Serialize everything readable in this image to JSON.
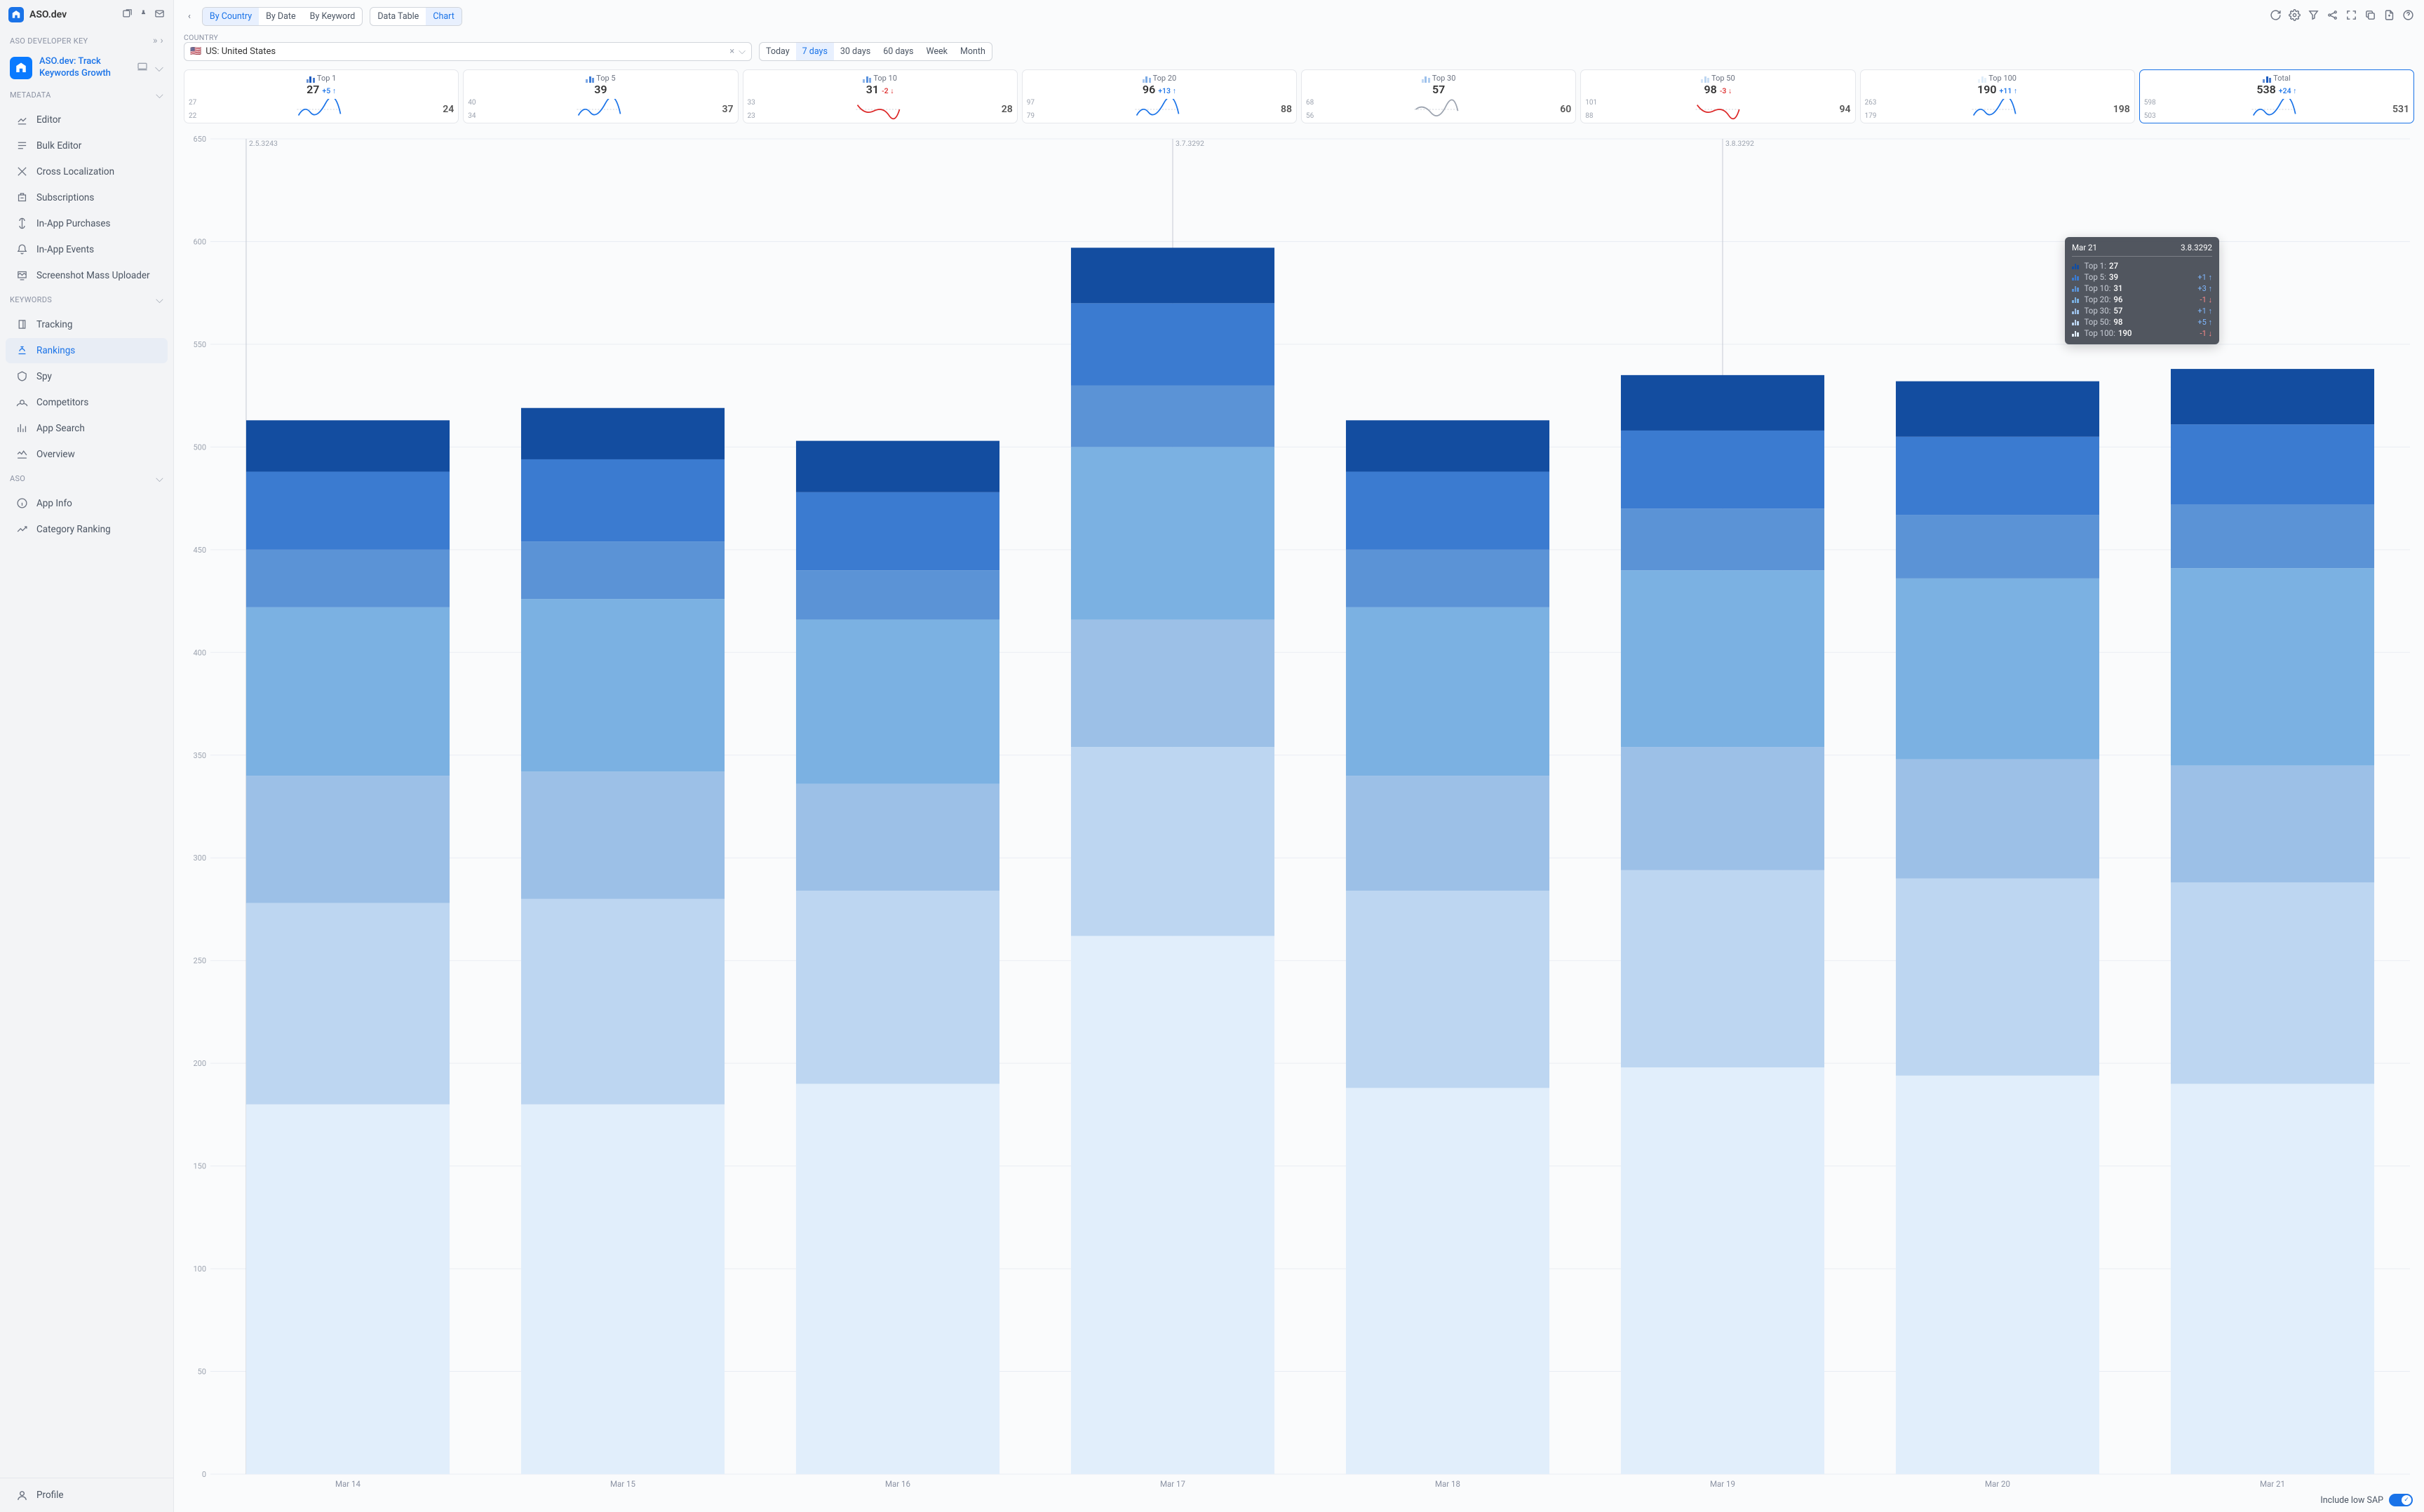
{
  "sidebar": {
    "title": "ASO.dev",
    "dev_key_label": "ASO DEVELOPER KEY",
    "app_name": "ASO.dev: Track Keywords Growth",
    "sections": {
      "metadata": {
        "label": "METADATA",
        "items": [
          "Editor",
          "Bulk Editor",
          "Cross Localization",
          "Subscriptions",
          "In-App Purchases",
          "In-App Events",
          "Screenshot Mass Uploader"
        ]
      },
      "keywords": {
        "label": "KEYWORDS",
        "items": [
          "Tracking",
          "Rankings",
          "Spy",
          "Competitors",
          "App Search",
          "Overview"
        ],
        "active": "Rankings"
      },
      "aso": {
        "label": "ASO",
        "items": [
          "App Info",
          "Category Ranking"
        ]
      }
    },
    "profile": "Profile"
  },
  "toolbar": {
    "tabs": [
      "By Country",
      "By Date",
      "By Keyword"
    ],
    "active_tab": "By Country",
    "view": [
      "Data Table",
      "Chart"
    ],
    "active_view": "Chart"
  },
  "country": {
    "label": "COUNTRY",
    "flag": "🇺🇸",
    "text": "US: United States"
  },
  "ranges": {
    "options": [
      "Today",
      "7 days",
      "30 days",
      "60 days",
      "Week",
      "Month"
    ],
    "active": "7 days"
  },
  "cards": [
    {
      "title": "Top 1",
      "value": "27",
      "delta": "+5",
      "dir": "up",
      "l_top": "27",
      "l_bot": "22",
      "r": "24",
      "color_ic": "#1b5bbf",
      "spark": "blue"
    },
    {
      "title": "Top 5",
      "value": "39",
      "delta": "",
      "dir": "",
      "l_top": "40",
      "l_bot": "34",
      "r": "37",
      "color_ic": "#3b7bd6",
      "spark": "blue"
    },
    {
      "title": "Top 10",
      "value": "31",
      "delta": "-2",
      "dir": "down",
      "l_top": "33",
      "l_bot": "23",
      "r": "28",
      "color_ic": "#5b93de",
      "spark": "red"
    },
    {
      "title": "Top 20",
      "value": "96",
      "delta": "+13",
      "dir": "up",
      "l_top": "97",
      "l_bot": "79",
      "r": "88",
      "color_ic": "#7baae5",
      "spark": "blue"
    },
    {
      "title": "Top 30",
      "value": "57",
      "delta": "",
      "dir": "",
      "l_top": "68",
      "l_bot": "56",
      "r": "60",
      "color_ic": "#9cc0eb",
      "spark": "gray"
    },
    {
      "title": "Top 50",
      "value": "98",
      "delta": "-3",
      "dir": "down",
      "l_top": "101",
      "l_bot": "88",
      "r": "94",
      "color_ic": "#bdd6f1",
      "spark": "red"
    },
    {
      "title": "Top 100",
      "value": "190",
      "delta": "+11",
      "dir": "up",
      "l_top": "263",
      "l_bot": "179",
      "r": "198",
      "color_ic": "#deecf8",
      "spark": "blue"
    },
    {
      "title": "Total",
      "value": "538",
      "delta": "+24",
      "dir": "up",
      "l_top": "598",
      "l_bot": "503",
      "r": "531",
      "color_ic": "#1b5bbf",
      "spark": "blue",
      "active": true
    }
  ],
  "chart": {
    "type": "stacked-bar",
    "ylim": [
      0,
      650
    ],
    "ytick_step": 50,
    "y_ticks": [
      0,
      50,
      100,
      150,
      200,
      250,
      300,
      350,
      400,
      450,
      500,
      550,
      600,
      650
    ],
    "x_labels": [
      "Mar 14",
      "Mar 15",
      "Mar 16",
      "Mar 17",
      "Mar 18",
      "Mar 19",
      "Mar 20",
      "Mar 21"
    ],
    "segment_order": [
      "top100",
      "top50",
      "top30",
      "top20",
      "top10",
      "top5",
      "top1"
    ],
    "segment_colors": {
      "top100": "#e1eefb",
      "top50": "#bdd6f1",
      "top30": "#9cc0e7",
      "top20": "#7bb1e2",
      "top10": "#5b93d6",
      "top5": "#3b7bd0",
      "top1": "#134da0"
    },
    "bars": [
      {
        "top100": 180,
        "top50": 98,
        "top30": 62,
        "top20": 82,
        "top10": 28,
        "top5": 38,
        "top1": 25
      },
      {
        "top100": 180,
        "top50": 100,
        "top30": 62,
        "top20": 84,
        "top10": 28,
        "top5": 40,
        "top1": 25
      },
      {
        "top100": 190,
        "top50": 94,
        "top30": 52,
        "top20": 80,
        "top10": 24,
        "top5": 38,
        "top1": 25
      },
      {
        "top100": 262,
        "top50": 92,
        "top30": 62,
        "top20": 84,
        "top10": 30,
        "top5": 40,
        "top1": 27
      },
      {
        "top100": 188,
        "top50": 96,
        "top30": 56,
        "top20": 82,
        "top10": 28,
        "top5": 38,
        "top1": 25
      },
      {
        "top100": 198,
        "top50": 96,
        "top30": 60,
        "top20": 86,
        "top10": 30,
        "top5": 38,
        "top1": 27
      },
      {
        "top100": 194,
        "top50": 96,
        "top30": 58,
        "top20": 88,
        "top10": 31,
        "top5": 38,
        "top1": 27
      },
      {
        "top100": 190,
        "top50": 98,
        "top30": 57,
        "top20": 96,
        "top10": 31,
        "top5": 39,
        "top1": 27
      }
    ],
    "annotations": [
      {
        "label": "2.5.3243",
        "bar_index": 0,
        "position": "left"
      },
      {
        "label": "3.7.3292",
        "bar_index": 3,
        "position": "center"
      },
      {
        "label": "3.8.3292",
        "bar_index": 5,
        "position": "center"
      }
    ],
    "grid_color": "#e9edf3",
    "bar_width_ratio": 0.74
  },
  "tooltip": {
    "date": "Mar 21",
    "version": "3.8.3292",
    "rows": [
      {
        "label": "Top 1:",
        "val": "27",
        "delta": "",
        "dir": "",
        "c": "#134da0"
      },
      {
        "label": "Top 5:",
        "val": "39",
        "delta": "+1",
        "dir": "up",
        "c": "#3b7bd0"
      },
      {
        "label": "Top 10:",
        "val": "31",
        "delta": "+3",
        "dir": "up",
        "c": "#5b93d6"
      },
      {
        "label": "Top 20:",
        "val": "96",
        "delta": "-1",
        "dir": "down",
        "c": "#7bb1e2"
      },
      {
        "label": "Top 30:",
        "val": "57",
        "delta": "+1",
        "dir": "up",
        "c": "#9cc0e7"
      },
      {
        "label": "Top 50:",
        "val": "98",
        "delta": "+5",
        "dir": "up",
        "c": "#bdd6f1"
      },
      {
        "label": "Top 100:",
        "val": "190",
        "delta": "-1",
        "dir": "down",
        "c": "#e1eefb"
      }
    ]
  },
  "footer": {
    "toggle_label": "Include low SAP"
  }
}
